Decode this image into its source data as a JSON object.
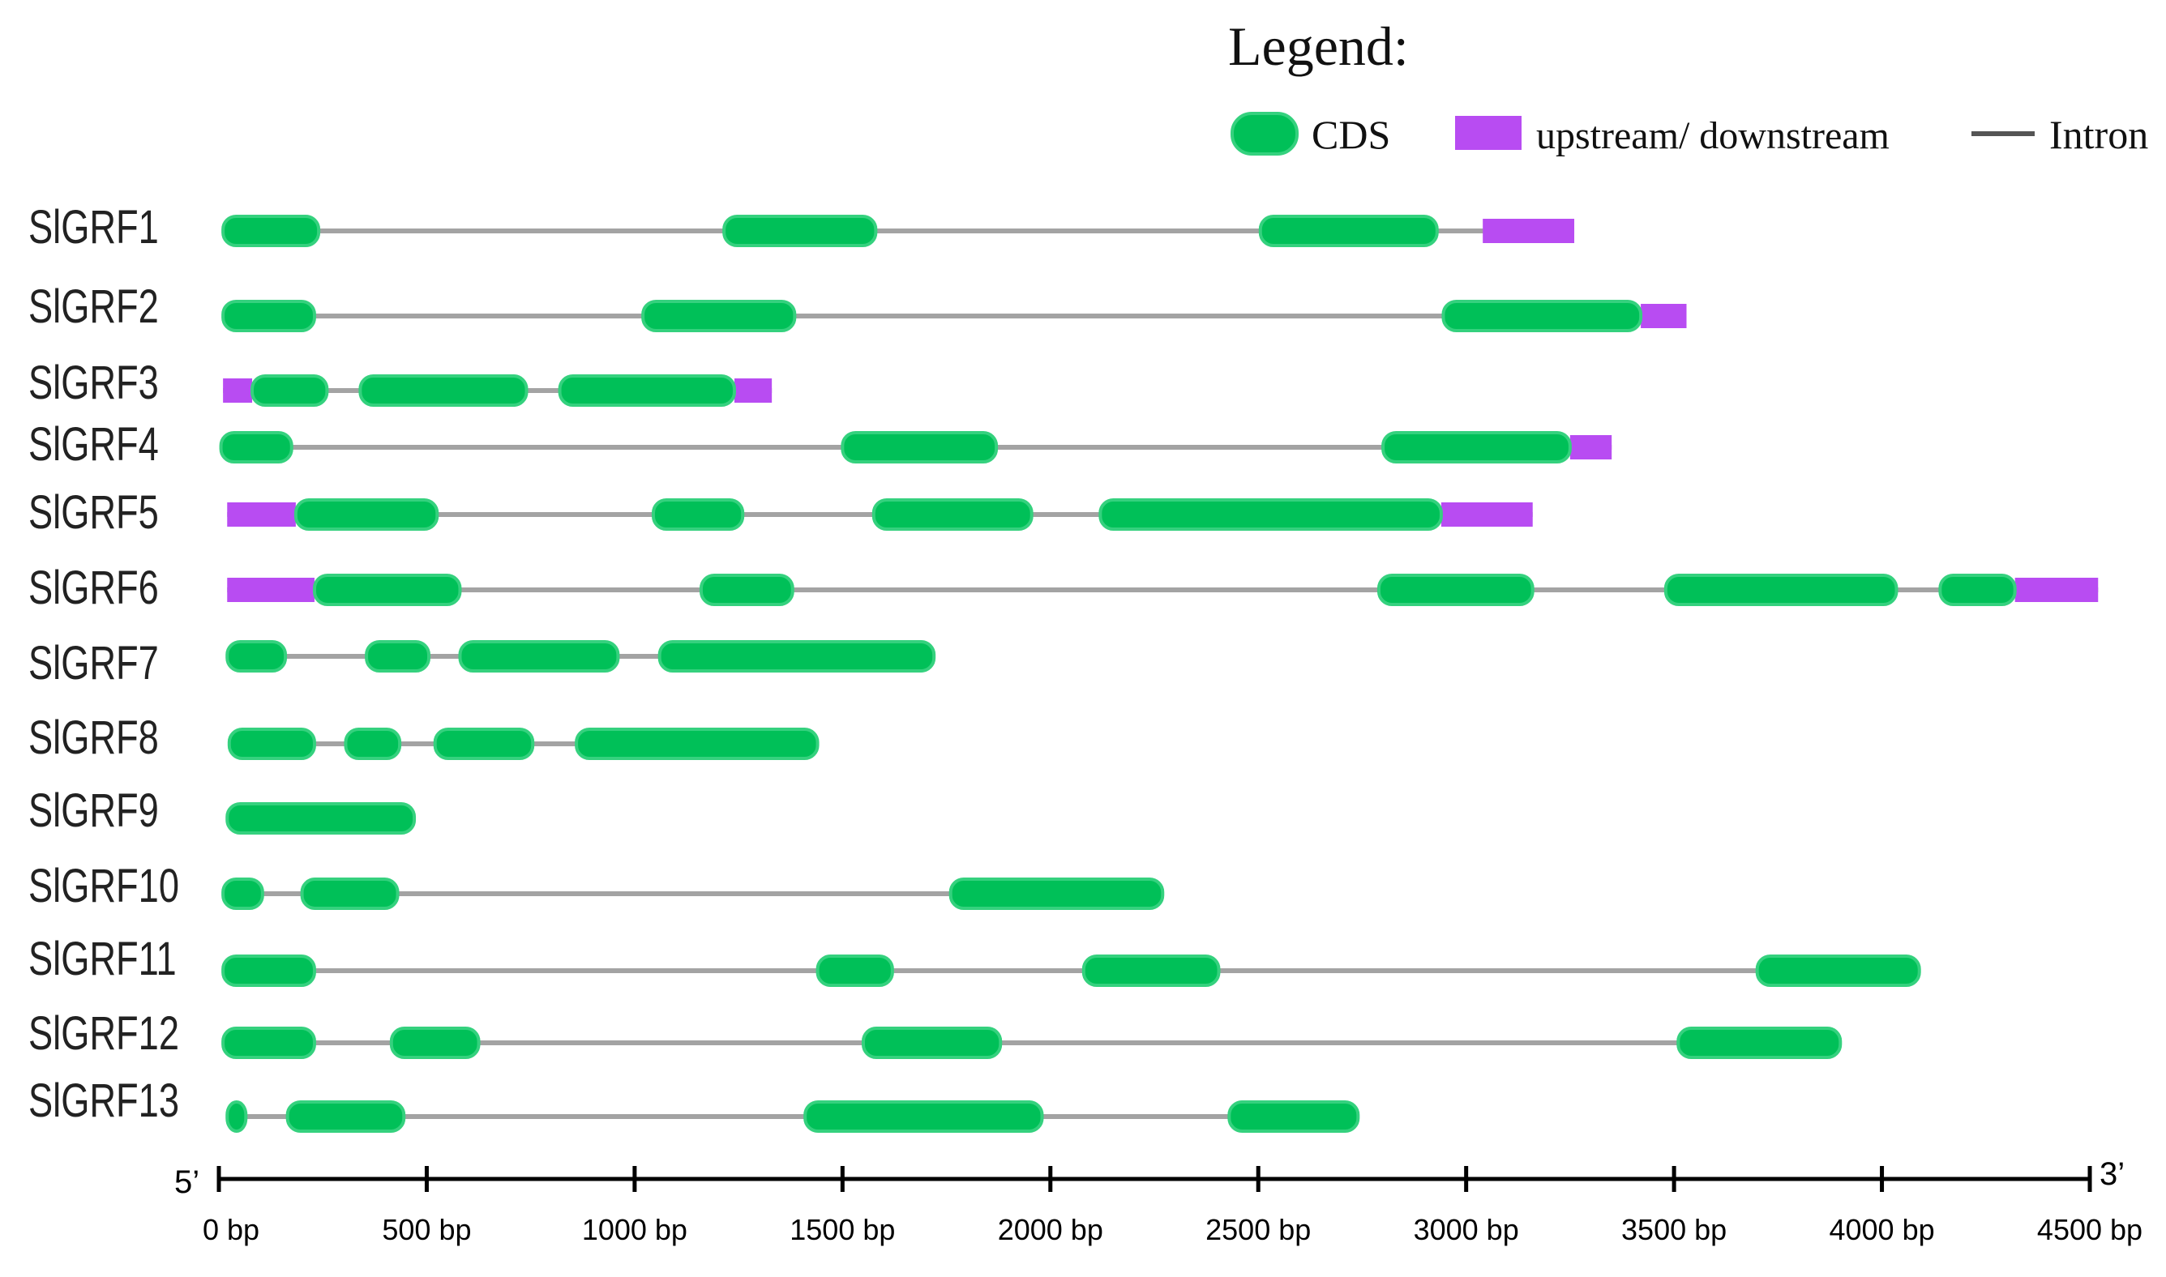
{
  "legend": {
    "title": "Legend:",
    "items": [
      {
        "key": "cds",
        "label": "CDS",
        "color": "#00c058"
      },
      {
        "key": "utr",
        "label": "upstream/ downstream",
        "color": "#b84cf2"
      },
      {
        "key": "intron",
        "label": "Intron",
        "color": "#555555"
      }
    ]
  },
  "colors": {
    "cds": "#00c058",
    "cds_edge": "#35d17e",
    "utr": "#b84cf2",
    "intron": "#a3a3a3",
    "axis": "#000000"
  },
  "axis": {
    "start_label": "5’",
    "end_label": "3’",
    "range_bp": [
      0,
      4500
    ],
    "ticks": [
      {
        "value": 0,
        "label": "0 bp"
      },
      {
        "value": 500,
        "label": "500 bp"
      },
      {
        "value": 1000,
        "label": "1000 bp"
      },
      {
        "value": 1500,
        "label": "1500 bp"
      },
      {
        "value": 2000,
        "label": "2000 bp"
      },
      {
        "value": 2500,
        "label": "2500 bp"
      },
      {
        "value": 3000,
        "label": "3000 bp"
      },
      {
        "value": 3500,
        "label": "3500 bp"
      },
      {
        "value": 4000,
        "label": "4000 bp"
      },
      {
        "value": 4500,
        "label": "4500 bp"
      }
    ]
  },
  "genes": [
    {
      "name": "SlGRF1",
      "start": 10,
      "end": 3260,
      "cds": [
        [
          10,
          240
        ],
        [
          1215,
          1580
        ],
        [
          2505,
          2930
        ]
      ],
      "utr": [
        [
          3040,
          3260
        ]
      ]
    },
    {
      "name": "SlGRF2",
      "start": 10,
      "end": 3530,
      "cds": [
        [
          10,
          230
        ],
        [
          1020,
          1385
        ],
        [
          2945,
          3420
        ]
      ],
      "utr": [
        [
          3420,
          3530
        ]
      ]
    },
    {
      "name": "SlGRF3",
      "start": 10,
      "end": 1330,
      "cds": [
        [
          80,
          260
        ],
        [
          340,
          740
        ],
        [
          820,
          1240
        ]
      ],
      "utr": [
        [
          10,
          80
        ],
        [
          1240,
          1330
        ]
      ]
    },
    {
      "name": "SlGRF4",
      "start": 5,
      "end": 3350,
      "cds": [
        [
          5,
          175
        ],
        [
          1500,
          1870
        ],
        [
          2800,
          3250
        ]
      ],
      "utr": [
        [
          3250,
          3350
        ]
      ]
    },
    {
      "name": "SlGRF5",
      "start": 20,
      "end": 3160,
      "cds": [
        [
          185,
          525
        ],
        [
          1045,
          1260
        ],
        [
          1575,
          1955
        ],
        [
          2120,
          2940
        ]
      ],
      "utr": [
        [
          20,
          185
        ],
        [
          2940,
          3160
        ]
      ]
    },
    {
      "name": "SlGRF6",
      "start": 20,
      "end": 4520,
      "cds": [
        [
          230,
          580
        ],
        [
          1160,
          1380
        ],
        [
          2790,
          3160
        ],
        [
          3480,
          4035
        ],
        [
          4140,
          4320
        ]
      ],
      "utr": [
        [
          20,
          230
        ],
        [
          4320,
          4520
        ]
      ]
    },
    {
      "name": "SlGRF7",
      "start": 20,
      "end": 1720,
      "cds": [
        [
          20,
          160
        ],
        [
          355,
          505
        ],
        [
          580,
          960
        ],
        [
          1060,
          1720
        ]
      ]
    },
    {
      "name": "SlGRF8",
      "start": 25,
      "end": 1440,
      "cds": [
        [
          25,
          230
        ],
        [
          305,
          435
        ],
        [
          520,
          755
        ],
        [
          860,
          1440
        ]
      ]
    },
    {
      "name": "SlGRF9",
      "start": 20,
      "end": 470,
      "cds": [
        [
          20,
          470
        ]
      ]
    },
    {
      "name": "SlGRF10",
      "start": 10,
      "end": 2270,
      "cds": [
        [
          10,
          105
        ],
        [
          200,
          430
        ],
        [
          1760,
          2270
        ]
      ]
    },
    {
      "name": "SlGRF11",
      "start": 10,
      "end": 4090,
      "cds": [
        [
          10,
          230
        ],
        [
          1440,
          1620
        ],
        [
          2080,
          2405
        ],
        [
          3700,
          4090
        ]
      ]
    },
    {
      "name": "SlGRF12",
      "start": 10,
      "end": 3900,
      "cds": [
        [
          10,
          230
        ],
        [
          415,
          625
        ],
        [
          1550,
          1880
        ],
        [
          3510,
          3900
        ]
      ]
    },
    {
      "name": "SlGRF13",
      "start": 20,
      "end": 2740,
      "cds": [
        [
          20,
          65
        ],
        [
          165,
          445
        ],
        [
          1410,
          1980
        ],
        [
          2430,
          2740
        ]
      ]
    }
  ]
}
